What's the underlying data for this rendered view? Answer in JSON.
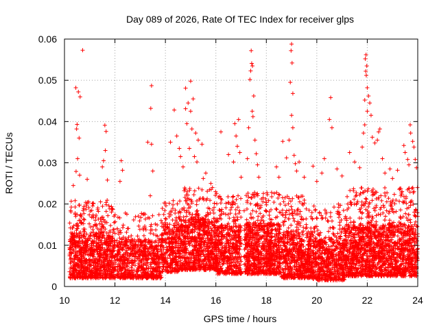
{
  "chart_data": {
    "type": "scatter",
    "title": "Day 089 of 2026, Rate Of TEC Index for receiver glps",
    "xlabel": "GPS time / hours",
    "ylabel": "ROTI / TECUs",
    "xlim": [
      10,
      24
    ],
    "ylim": [
      0,
      0.06
    ],
    "xticks": [
      10,
      12,
      14,
      16,
      18,
      20,
      22,
      24
    ],
    "xtick_labels": [
      "10",
      "12",
      "14",
      "16",
      "18",
      "20",
      "22",
      "24"
    ],
    "yticks": [
      0,
      0.01,
      0.02,
      0.03,
      0.04,
      0.05,
      0.06
    ],
    "ytick_labels": [
      "0",
      "0.01",
      "0.02",
      "0.03",
      "0.04",
      "0.05",
      "0.06"
    ],
    "grid": true,
    "marker": "+",
    "color": "#ff0000",
    "series": [
      {
        "name": "ROTI",
        "points": [
          [
            10.72,
            0.0573
          ],
          [
            10.45,
            0.0482
          ],
          [
            10.55,
            0.0472
          ],
          [
            10.62,
            0.046
          ],
          [
            10.5,
            0.0393
          ],
          [
            10.48,
            0.0382
          ],
          [
            10.58,
            0.036
          ],
          [
            10.52,
            0.031
          ],
          [
            10.46,
            0.0279
          ],
          [
            10.6,
            0.027
          ],
          [
            10.9,
            0.026
          ],
          [
            10.35,
            0.0245
          ],
          [
            11.6,
            0.0391
          ],
          [
            11.65,
            0.0376
          ],
          [
            11.55,
            0.0305
          ],
          [
            11.5,
            0.029
          ],
          [
            11.62,
            0.033
          ],
          [
            11.7,
            0.0258
          ],
          [
            12.25,
            0.0305
          ],
          [
            12.3,
            0.0282
          ],
          [
            12.2,
            0.0255
          ],
          [
            13.3,
            0.035
          ],
          [
            13.45,
            0.0487
          ],
          [
            13.42,
            0.0432
          ],
          [
            13.45,
            0.0345
          ],
          [
            13.5,
            0.028
          ],
          [
            13.4,
            0.022
          ],
          [
            14.35,
            0.0428
          ],
          [
            14.45,
            0.0365
          ],
          [
            14.2,
            0.035
          ],
          [
            14.55,
            0.0335
          ],
          [
            14.6,
            0.0315
          ],
          [
            14.8,
            0.0481
          ],
          [
            14.9,
            0.0445
          ],
          [
            15.0,
            0.0498
          ],
          [
            15.1,
            0.0455
          ],
          [
            15.0,
            0.0425
          ],
          [
            14.8,
            0.0431
          ],
          [
            14.85,
            0.0395
          ],
          [
            15.05,
            0.0382
          ],
          [
            15.2,
            0.0372
          ],
          [
            15.3,
            0.0355
          ],
          [
            15.45,
            0.0345
          ],
          [
            14.95,
            0.0335
          ],
          [
            15.15,
            0.0315
          ],
          [
            15.25,
            0.0302
          ],
          [
            14.7,
            0.029
          ],
          [
            15.6,
            0.0275
          ],
          [
            15.5,
            0.0262
          ],
          [
            15.8,
            0.025
          ],
          [
            16.2,
            0.0375
          ],
          [
            16.5,
            0.032
          ],
          [
            16.7,
            0.0302
          ],
          [
            16.75,
            0.0395
          ],
          [
            16.8,
            0.0365
          ],
          [
            16.85,
            0.034
          ],
          [
            16.9,
            0.0405
          ],
          [
            16.95,
            0.0325
          ],
          [
            17.0,
            0.0265
          ],
          [
            17.4,
            0.0572
          ],
          [
            17.42,
            0.0541
          ],
          [
            17.38,
            0.0523
          ],
          [
            17.45,
            0.0535
          ],
          [
            17.35,
            0.0502
          ],
          [
            17.5,
            0.0462
          ],
          [
            17.44,
            0.0425
          ],
          [
            17.47,
            0.0412
          ],
          [
            17.3,
            0.0385
          ],
          [
            17.55,
            0.0355
          ],
          [
            17.6,
            0.0322
          ],
          [
            17.25,
            0.031
          ],
          [
            17.65,
            0.0295
          ],
          [
            17.7,
            0.0265
          ],
          [
            18.65,
            0.0352
          ],
          [
            18.8,
            0.0312
          ],
          [
            18.4,
            0.029
          ],
          [
            18.5,
            0.0265
          ],
          [
            19.0,
            0.0588
          ],
          [
            18.98,
            0.0572
          ],
          [
            19.02,
            0.0542
          ],
          [
            18.95,
            0.0495
          ],
          [
            19.05,
            0.0468
          ],
          [
            19.0,
            0.0415
          ],
          [
            19.05,
            0.0385
          ],
          [
            18.9,
            0.0355
          ],
          [
            19.1,
            0.0318
          ],
          [
            19.15,
            0.0298
          ],
          [
            19.3,
            0.0302
          ],
          [
            19.2,
            0.028
          ],
          [
            19.5,
            0.0265
          ],
          [
            19.85,
            0.0292
          ],
          [
            20.0,
            0.0255
          ],
          [
            20.55,
            0.0458
          ],
          [
            20.5,
            0.0405
          ],
          [
            20.6,
            0.0385
          ],
          [
            20.3,
            0.031
          ],
          [
            20.2,
            0.0275
          ],
          [
            20.8,
            0.0285
          ],
          [
            21.0,
            0.0268
          ],
          [
            21.3,
            0.0325
          ],
          [
            21.5,
            0.0302
          ],
          [
            21.7,
            0.0288
          ],
          [
            21.95,
            0.0562
          ],
          [
            21.92,
            0.0552
          ],
          [
            21.98,
            0.0535
          ],
          [
            21.94,
            0.0522
          ],
          [
            21.96,
            0.0512
          ],
          [
            22.0,
            0.0482
          ],
          [
            22.05,
            0.0462
          ],
          [
            21.9,
            0.0452
          ],
          [
            22.1,
            0.0445
          ],
          [
            22.0,
            0.0425
          ],
          [
            22.15,
            0.0415
          ],
          [
            21.9,
            0.0392
          ],
          [
            21.85,
            0.0372
          ],
          [
            22.2,
            0.0362
          ],
          [
            21.8,
            0.0338
          ],
          [
            22.3,
            0.0348
          ],
          [
            22.5,
            0.0382
          ],
          [
            22.45,
            0.0375
          ],
          [
            22.4,
            0.0355
          ],
          [
            22.6,
            0.031
          ],
          [
            22.7,
            0.0275
          ],
          [
            22.9,
            0.0285
          ],
          [
            23.45,
            0.0342
          ],
          [
            23.5,
            0.0325
          ],
          [
            23.6,
            0.0308
          ],
          [
            23.7,
            0.0392
          ],
          [
            23.72,
            0.0372
          ],
          [
            23.8,
            0.0352
          ],
          [
            23.65,
            0.0295
          ],
          [
            23.85,
            0.0338
          ],
          [
            23.9,
            0.0308
          ],
          [
            23.95,
            0.0288
          ],
          [
            23.2,
            0.0282
          ],
          [
            23.0,
            0.0262
          ]
        ]
      }
    ],
    "coverage": [
      {
        "from": 10.2,
        "to": 12.02,
        "base": 0.0055,
        "spread": 0.011,
        "tall": 0.021,
        "density": 17
      },
      {
        "from": 12.08,
        "to": 13.85,
        "base": 0.0055,
        "spread": 0.0095,
        "tall": 0.018,
        "density": 13
      },
      {
        "from": 13.85,
        "to": 14.55,
        "base": 0.007,
        "spread": 0.012,
        "tall": 0.021,
        "density": 15
      },
      {
        "from": 14.55,
        "to": 16.05,
        "base": 0.0075,
        "spread": 0.0125,
        "tall": 0.024,
        "density": 18
      },
      {
        "from": 16.05,
        "to": 17.02,
        "base": 0.0065,
        "spread": 0.012,
        "tall": 0.022,
        "density": 16
      },
      {
        "from": 17.12,
        "to": 18.6,
        "base": 0.0065,
        "spread": 0.0125,
        "tall": 0.023,
        "density": 18
      },
      {
        "from": 18.6,
        "to": 19.85,
        "base": 0.0055,
        "spread": 0.0115,
        "tall": 0.022,
        "density": 17
      },
      {
        "from": 19.85,
        "to": 21.1,
        "base": 0.005,
        "spread": 0.0105,
        "tall": 0.02,
        "density": 15
      },
      {
        "from": 21.1,
        "to": 24.0,
        "base": 0.006,
        "spread": 0.0125,
        "tall": 0.024,
        "density": 18
      }
    ]
  }
}
